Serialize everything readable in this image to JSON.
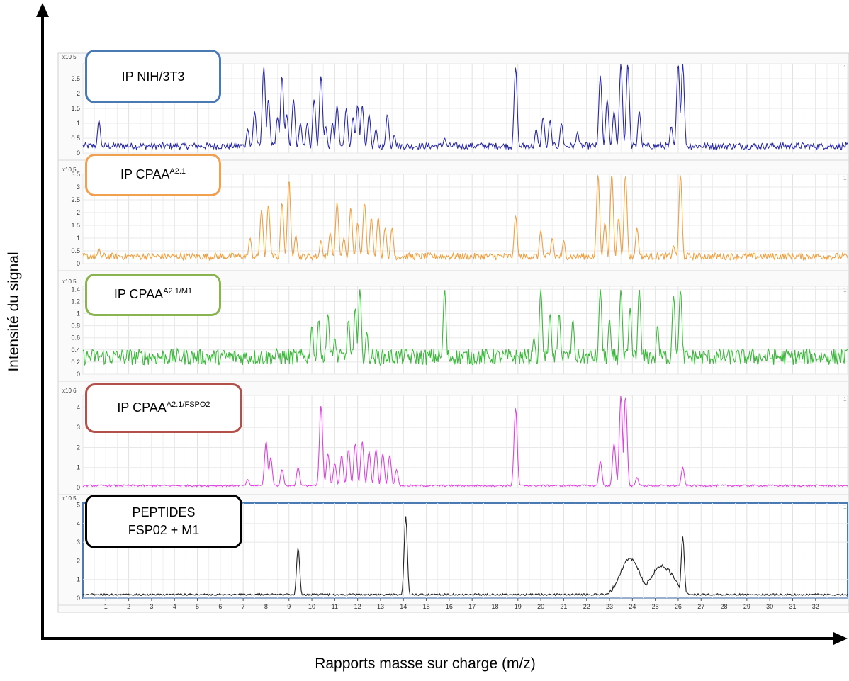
{
  "axes": {
    "ylabel": "Intensité du signal",
    "xlabel": "Rapports masse sur charge (m/z)"
  },
  "x_ticks": [
    "1",
    "2",
    "3",
    "4",
    "5",
    "6",
    "7",
    "8",
    "9",
    "10",
    "11",
    "12",
    "13",
    "14",
    "15",
    "16",
    "17",
    "18",
    "19",
    "20",
    "21",
    "22",
    "23",
    "24",
    "25",
    "26",
    "27",
    "28",
    "29",
    "30",
    "31",
    "32"
  ],
  "colors": {
    "nih": "#2a2aa8",
    "cpaa": "#f0a040",
    "m1": "#3cb83c",
    "fspo2": "#e040e0",
    "peptides": "#222222",
    "border_nih": "#4a7ab4",
    "border_cpaa": "#f0a050",
    "border_m1": "#8ab450",
    "border_fspo2": "#b4504a",
    "border_peptides": "#000000"
  },
  "chart_data": {
    "type": "line",
    "xlim": [
      0,
      33.4
    ],
    "xlabel": "Rapports masse sur charge (m/z)",
    "ylabel": "Intensité du signal",
    "grid": true,
    "series": [
      {
        "key": "nih",
        "label_main": "IP NIH/3T3",
        "label_sup": "",
        "scale": "x10 5",
        "ylim": [
          0,
          3
        ],
        "yticks": [
          "0",
          "0.5",
          "1",
          "1.5",
          "2",
          "2.5"
        ],
        "baseline": 0.25,
        "x": [
          0.7,
          7.2,
          7.5,
          7.9,
          8.1,
          8.5,
          8.7,
          8.9,
          9.2,
          9.5,
          9.8,
          10.1,
          10.4,
          10.6,
          10.9,
          11.1,
          11.5,
          11.8,
          12.0,
          12.2,
          12.5,
          12.8,
          13.3,
          13.6,
          15.8,
          18.9,
          19.8,
          20.1,
          20.4,
          20.9,
          21.6,
          22.6,
          22.9,
          23.2,
          23.5,
          23.8,
          24.3,
          25.7,
          26.0,
          26.2
        ],
        "y": [
          1.1,
          0.8,
          1.4,
          2.9,
          1.8,
          1.2,
          2.6,
          1.3,
          1.8,
          1.0,
          1.0,
          1.8,
          2.6,
          0.9,
          1.0,
          1.6,
          1.5,
          1.2,
          1.6,
          1.6,
          1.3,
          0.8,
          1.3,
          0.6,
          0.5,
          2.9,
          0.8,
          1.2,
          1.1,
          1.0,
          0.7,
          2.6,
          1.8,
          1.4,
          3.0,
          3.0,
          1.4,
          0.9,
          3.0,
          3.0
        ]
      },
      {
        "key": "cpaa",
        "label_main": "IP CPAA",
        "label_sup": "A2.1",
        "scale": "x10 5",
        "ylim": [
          0,
          3.5
        ],
        "yticks": [
          "0",
          "0.5",
          "1",
          "1.5",
          "2",
          "2.5",
          "3",
          "3.5"
        ],
        "baseline": 0.3,
        "x": [
          0.7,
          7.3,
          7.8,
          8.1,
          8.7,
          9.0,
          9.3,
          10.4,
          10.8,
          11.1,
          11.4,
          11.7,
          12.0,
          12.3,
          12.6,
          12.9,
          13.2,
          13.5,
          18.9,
          20.0,
          20.5,
          21.0,
          22.5,
          22.8,
          23.1,
          23.4,
          23.7,
          24.2,
          25.8,
          26.1
        ],
        "y": [
          0.6,
          1.0,
          2.1,
          2.3,
          2.4,
          3.3,
          1.1,
          0.9,
          1.2,
          2.4,
          1.0,
          2.2,
          1.6,
          2.4,
          1.8,
          1.8,
          1.4,
          1.4,
          1.9,
          1.3,
          1.0,
          0.9,
          3.5,
          1.6,
          3.5,
          1.8,
          3.5,
          1.4,
          0.7,
          3.5
        ]
      },
      {
        "key": "m1",
        "label_main": "IP CPAA",
        "label_sup": "A2.1/M1",
        "scale": "x10 5",
        "ylim": [
          0,
          1.45
        ],
        "yticks": [
          "0",
          "0.2",
          "0.4",
          "0.6",
          "0.8",
          "1",
          "1.2",
          "1.4"
        ],
        "baseline": 0.3,
        "x": [
          10.0,
          10.3,
          10.7,
          11.0,
          11.6,
          11.9,
          12.1,
          12.4,
          15.8,
          19.7,
          20.0,
          20.4,
          20.8,
          21.4,
          22.6,
          23.0,
          23.5,
          23.9,
          24.3,
          25.1,
          25.8,
          26.1
        ],
        "y": [
          0.8,
          0.9,
          1.0,
          0.6,
          0.9,
          1.1,
          1.4,
          0.7,
          1.4,
          0.6,
          1.4,
          1.0,
          1.0,
          0.9,
          1.4,
          0.9,
          1.4,
          1.1,
          1.4,
          0.8,
          1.3,
          1.4
        ]
      },
      {
        "key": "fspo2",
        "label_main": "IP CPAA",
        "label_sup": "A2.1/FSPO2",
        "scale": "x10 6",
        "ylim": [
          0,
          4.6
        ],
        "yticks": [
          "0",
          "1",
          "2",
          "3",
          "4"
        ],
        "baseline": 0.1,
        "x": [
          7.2,
          8.0,
          8.2,
          8.7,
          9.4,
          10.4,
          10.7,
          11.0,
          11.3,
          11.6,
          11.9,
          12.2,
          12.5,
          12.8,
          13.1,
          13.4,
          13.7,
          18.9,
          22.6,
          23.2,
          23.5,
          23.7,
          24.2,
          26.2
        ],
        "y": [
          0.4,
          2.3,
          1.5,
          0.9,
          1.0,
          4.1,
          1.7,
          1.2,
          1.6,
          1.9,
          2.2,
          2.3,
          1.8,
          1.9,
          1.7,
          1.6,
          0.9,
          4.0,
          1.3,
          2.2,
          4.6,
          4.6,
          0.5,
          1.0
        ]
      },
      {
        "key": "peptides",
        "label_main": "PEPTIDES",
        "label_sup": "FSP02 + M1",
        "scale": "x10 5",
        "ylim": [
          0,
          5.1
        ],
        "yticks": [
          "0",
          "1",
          "2",
          "3",
          "4",
          "5"
        ],
        "baseline": 0.2,
        "x": [
          9.4,
          14.1,
          26.2
        ],
        "y": [
          2.7,
          4.4,
          3.3
        ],
        "hump": true
      }
    ]
  }
}
